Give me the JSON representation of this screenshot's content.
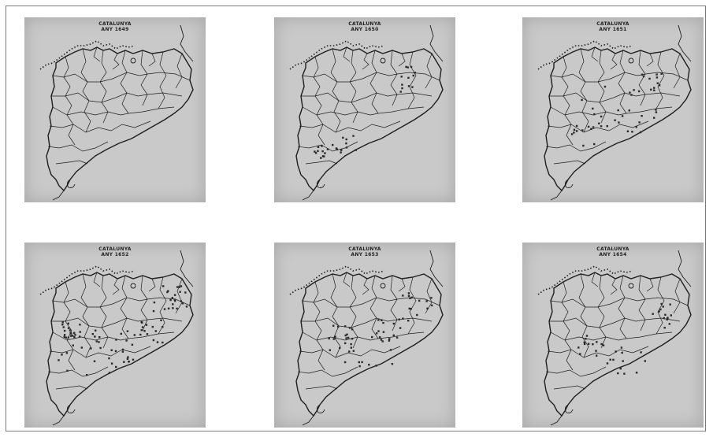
{
  "figure": {
    "maps": [
      {
        "region": "CATALUNYA",
        "year_label": "ANY  1649",
        "dot_count": 0
      },
      {
        "region": "CATALUNYA",
        "year_label": "ANY  1650",
        "dot_count": 34
      },
      {
        "region": "CATALUNYA",
        "year_label": "ANY  1651",
        "dot_count": 48
      },
      {
        "region": "CATALUNYA",
        "year_label": "ANY  1652",
        "dot_count": 95
      },
      {
        "region": "CATALUNYA",
        "year_label": "ANY  1653",
        "dot_count": 60
      },
      {
        "region": "CATALUNYA",
        "year_label": "ANY  1654",
        "dot_count": 40
      }
    ],
    "colors": {
      "paper": "#c9c9c9",
      "ink": "#1e1e1e",
      "dot": "#2a2a2a"
    }
  }
}
